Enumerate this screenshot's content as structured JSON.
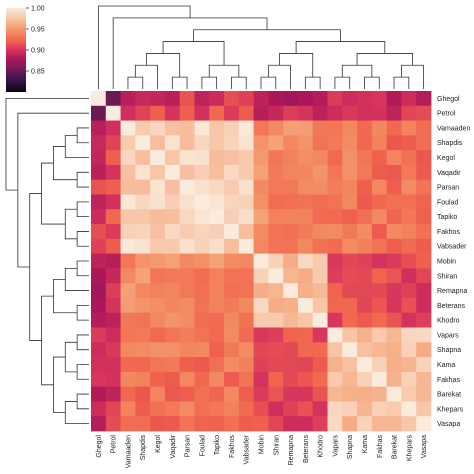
{
  "chart_data": {
    "type": "heatmap",
    "title": "",
    "xlabel": "",
    "ylabel": "",
    "labels": [
      "Ghegol",
      "Petrol",
      "Vamaaden",
      "Shapdis",
      "Kegol",
      "Vaqadir",
      "Parsan",
      "Foulad",
      "Tapiko",
      "Fakhos",
      "Vabsader",
      "Mobin",
      "Shiran",
      "Remapna",
      "Beterans",
      "Khodro",
      "Vapars",
      "Shapna",
      "Kama",
      "Fakhas",
      "Barekat",
      "Khepars",
      "Vasapa"
    ],
    "row_tick_labels": [
      "Ghegol",
      "Petrol",
      "Vamaaden",
      "Shapdis",
      "Kegol",
      "Vaqadir",
      "Parsan",
      "Foulad",
      "Tapiko",
      "Fakhos",
      "Vabsader",
      "Mobin",
      "Shiran",
      "Remapna",
      "Beterans",
      "Khodro",
      "Vapars",
      "Shapna",
      "Kama",
      "Fakhas",
      "Barekat",
      "Khepars",
      "Vasapa"
    ],
    "col_tick_labels": [
      "Ghegol",
      "Petrol",
      "Vamaaden",
      "Shapdis",
      "Kegol",
      "Vaqadir",
      "Parsan",
      "Foulad",
      "Tapiko",
      "Fakhos",
      "Vabsader",
      "Mobin",
      "Shiran",
      "Remapna",
      "Beterans",
      "Khodro",
      "Vapars",
      "Shapna",
      "Kama",
      "Fakhas",
      "Barekat",
      "Khepars",
      "Vasapa"
    ],
    "clusters": [
      {
        "members": [
          0,
          0
        ]
      },
      {
        "members": [
          1,
          1
        ]
      },
      {
        "members": [
          2,
          10
        ]
      },
      {
        "members": [
          11,
          15
        ]
      },
      {
        "members": [
          16,
          22
        ]
      }
    ],
    "cluster_similarity": [
      [
        1.0,
        0.86,
        0.9,
        0.88,
        0.89
      ],
      [
        0.86,
        1.0,
        0.91,
        0.9,
        0.9
      ],
      [
        0.9,
        0.91,
        0.98,
        0.94,
        0.93
      ],
      [
        0.88,
        0.9,
        0.94,
        0.97,
        0.91
      ],
      [
        0.89,
        0.9,
        0.93,
        0.91,
        0.97
      ]
    ],
    "colorbar": {
      "min": 0.8,
      "max": 1.0,
      "ticks": [
        0.85,
        0.9,
        0.95,
        1.0
      ],
      "tick_labels": [
        "0.85",
        "0.90",
        "0.95",
        "1.00"
      ]
    },
    "colormap": [
      "#03051a",
      "#2a1237",
      "#551854",
      "#821a58",
      "#ad1759",
      "#d6325d",
      "#f0604d",
      "#f3875e",
      "#f6aa82",
      "#f8ccb1",
      "#faebdd"
    ],
    "grid": false,
    "dendrogram": true
  }
}
